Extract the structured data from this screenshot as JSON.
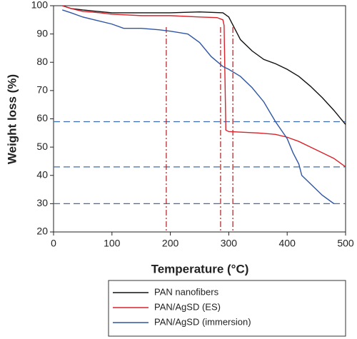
{
  "chart_data": {
    "type": "line",
    "x_label": "Temperature (°C)",
    "y_label": "Weight loss (%)",
    "xlim": [
      0,
      500
    ],
    "xticks": [
      0,
      100,
      200,
      300,
      400,
      500
    ],
    "ylim": [
      20,
      100
    ],
    "yticks": [
      20,
      30,
      40,
      50,
      60,
      70,
      80,
      90,
      100
    ],
    "hlines": [
      59,
      43,
      30
    ],
    "hline_color": "#3a6db5",
    "vlines": [
      193,
      286,
      307
    ],
    "vline_color": "#b22d2d",
    "series": [
      {
        "name": "PAN nanofibers",
        "color": "#111111",
        "x": [
          15,
          30,
          50,
          100,
          150,
          200,
          250,
          290,
          300,
          310,
          320,
          340,
          360,
          380,
          400,
          420,
          440,
          460,
          480,
          500
        ],
        "values": [
          100,
          99,
          98.5,
          97.5,
          97.5,
          97.5,
          97.8,
          97.5,
          96,
          92,
          88,
          84,
          81,
          79.5,
          77.5,
          75,
          71.5,
          67.5,
          63,
          58
        ]
      },
      {
        "name": "PAN/AgSD (ES)",
        "color": "#d9222a",
        "x": [
          15,
          30,
          50,
          80,
          100,
          120,
          150,
          200,
          250,
          280,
          290,
          292,
          295,
          300,
          350,
          380,
          400,
          420,
          440,
          460,
          480,
          500
        ],
        "values": [
          100,
          99,
          98,
          97.5,
          97,
          96.8,
          96.5,
          96.5,
          96,
          95.8,
          95,
          93,
          56,
          55.5,
          55,
          54.5,
          53.5,
          52,
          50,
          48,
          46,
          43
        ]
      },
      {
        "name": "PAN/AgSD (immersion)",
        "color": "#2f55a4",
        "x": [
          15,
          30,
          50,
          70,
          100,
          120,
          150,
          180,
          200,
          230,
          250,
          270,
          290,
          300,
          320,
          340,
          360,
          380,
          400,
          410,
          420,
          425,
          440,
          460,
          480
        ],
        "values": [
          98.5,
          97.5,
          96,
          95,
          93.5,
          92,
          92,
          91.5,
          91,
          90,
          87,
          82,
          78.5,
          77.5,
          75,
          71,
          66,
          59,
          53,
          48,
          44,
          40,
          37,
          33,
          30
        ]
      }
    ]
  }
}
